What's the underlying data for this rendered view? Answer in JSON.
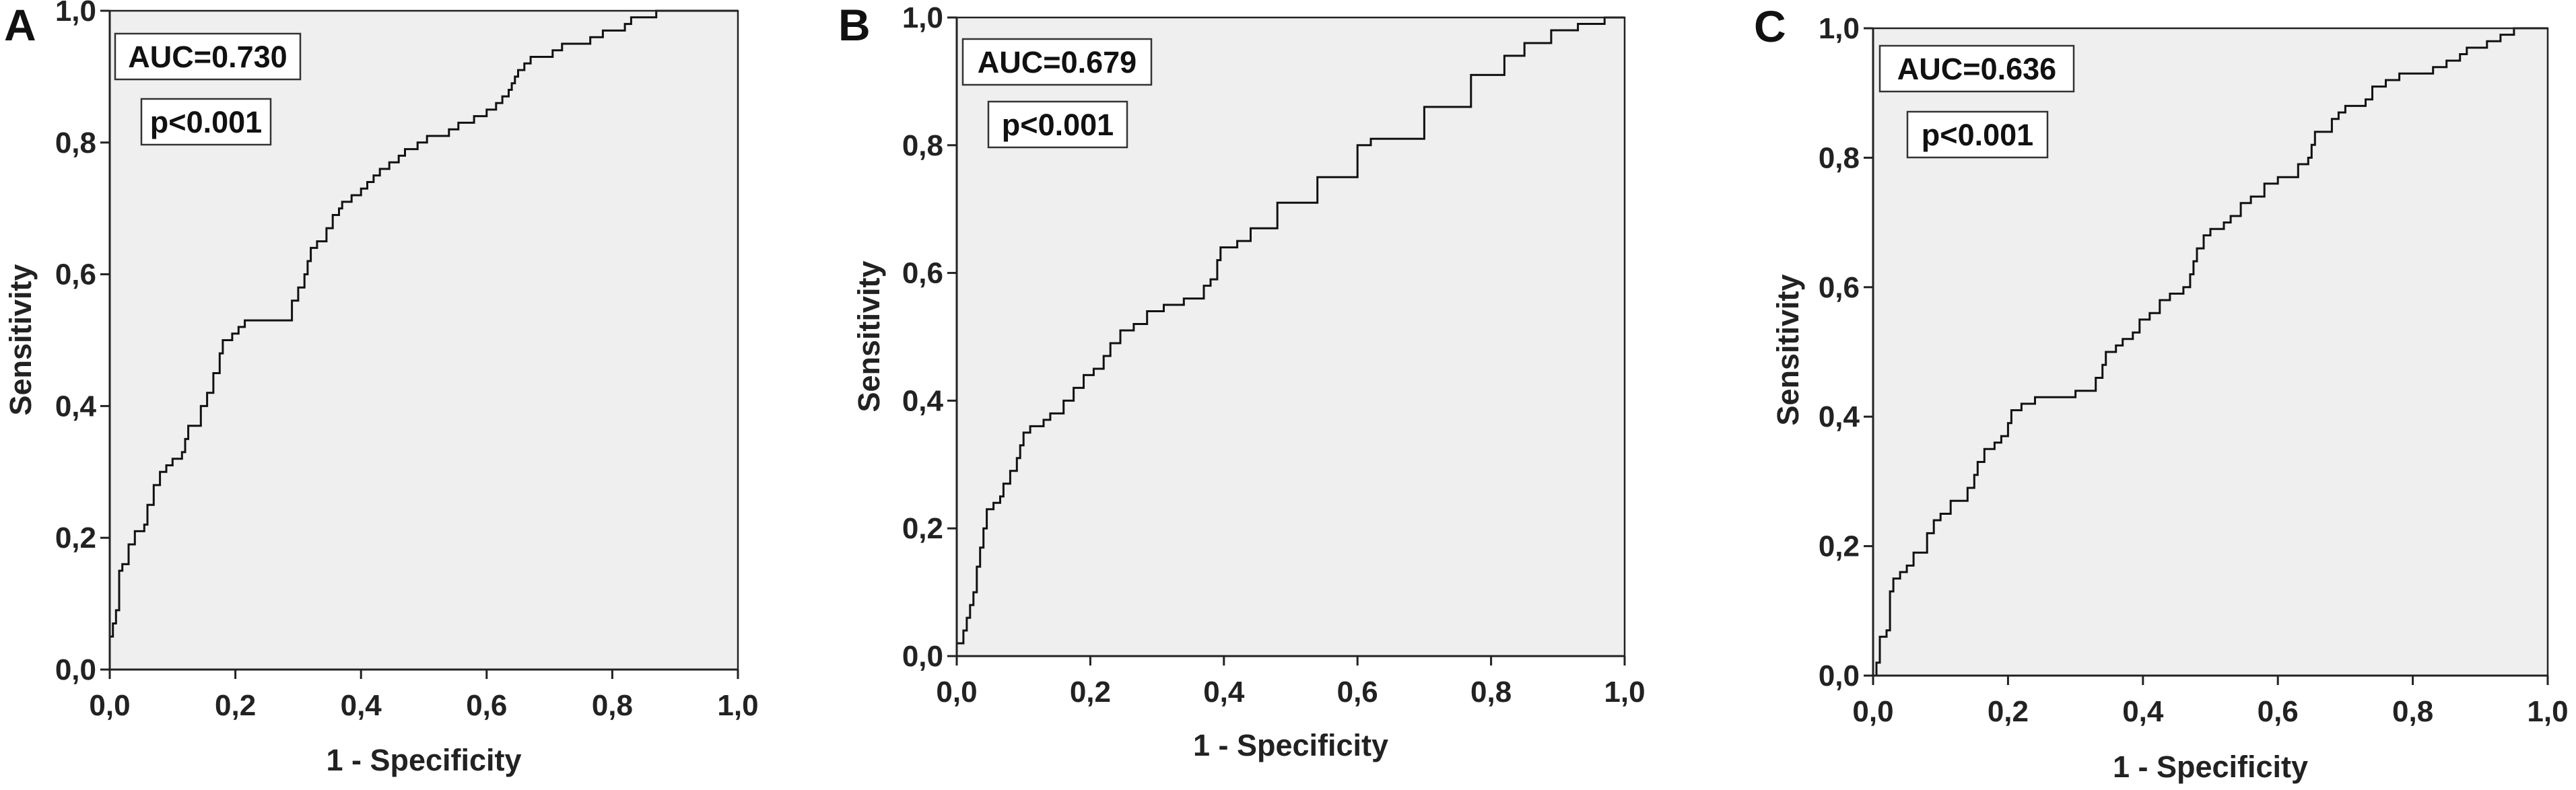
{
  "chart_data": [
    {
      "type": "line",
      "panel_label": "A",
      "xlabel": "1 - Specificity",
      "ylabel": "Sensitivity",
      "xlim": [
        0,
        1
      ],
      "ylim": [
        0,
        1
      ],
      "x_ticks": [
        "0,0",
        "0,2",
        "0,4",
        "0,6",
        "0,8",
        "1,0"
      ],
      "y_ticks": [
        "0,0",
        "0,2",
        "0,4",
        "0,6",
        "0,8",
        "1,0"
      ],
      "annotations": [
        "AUC=0.730",
        "p<0.001"
      ],
      "grid": false,
      "line_style": "step",
      "points": [
        [
          0,
          0
        ],
        [
          0,
          0.05
        ],
        [
          0.005,
          0.07
        ],
        [
          0.01,
          0.09
        ],
        [
          0.015,
          0.15
        ],
        [
          0.02,
          0.16
        ],
        [
          0.03,
          0.19
        ],
        [
          0.04,
          0.21
        ],
        [
          0.055,
          0.22
        ],
        [
          0.06,
          0.25
        ],
        [
          0.07,
          0.28
        ],
        [
          0.08,
          0.3
        ],
        [
          0.09,
          0.31
        ],
        [
          0.1,
          0.32
        ],
        [
          0.115,
          0.33
        ],
        [
          0.12,
          0.35
        ],
        [
          0.125,
          0.37
        ],
        [
          0.135,
          0.37
        ],
        [
          0.145,
          0.4
        ],
        [
          0.155,
          0.42
        ],
        [
          0.165,
          0.45
        ],
        [
          0.175,
          0.48
        ],
        [
          0.18,
          0.5
        ],
        [
          0.195,
          0.51
        ],
        [
          0.205,
          0.52
        ],
        [
          0.215,
          0.53
        ],
        [
          0.28,
          0.53
        ],
        [
          0.29,
          0.56
        ],
        [
          0.3,
          0.58
        ],
        [
          0.31,
          0.6
        ],
        [
          0.315,
          0.62
        ],
        [
          0.32,
          0.64
        ],
        [
          0.33,
          0.65
        ],
        [
          0.345,
          0.67
        ],
        [
          0.355,
          0.69
        ],
        [
          0.365,
          0.7
        ],
        [
          0.37,
          0.71
        ],
        [
          0.385,
          0.72
        ],
        [
          0.4,
          0.73
        ],
        [
          0.41,
          0.74
        ],
        [
          0.42,
          0.75
        ],
        [
          0.43,
          0.76
        ],
        [
          0.445,
          0.77
        ],
        [
          0.46,
          0.78
        ],
        [
          0.47,
          0.79
        ],
        [
          0.49,
          0.8
        ],
        [
          0.505,
          0.81
        ],
        [
          0.54,
          0.82
        ],
        [
          0.555,
          0.83
        ],
        [
          0.58,
          0.84
        ],
        [
          0.6,
          0.85
        ],
        [
          0.615,
          0.86
        ],
        [
          0.625,
          0.87
        ],
        [
          0.635,
          0.88
        ],
        [
          0.64,
          0.89
        ],
        [
          0.645,
          0.9
        ],
        [
          0.65,
          0.91
        ],
        [
          0.66,
          0.92
        ],
        [
          0.67,
          0.93
        ],
        [
          0.705,
          0.94
        ],
        [
          0.72,
          0.95
        ],
        [
          0.765,
          0.96
        ],
        [
          0.785,
          0.97
        ],
        [
          0.82,
          0.98
        ],
        [
          0.83,
          0.99
        ],
        [
          0.87,
          1.0
        ],
        [
          1.0,
          1.0
        ]
      ]
    },
    {
      "type": "line",
      "panel_label": "B",
      "xlabel": "1 - Specificity",
      "ylabel": "Sensitivity",
      "xlim": [
        0,
        1
      ],
      "ylim": [
        0,
        1
      ],
      "x_ticks": [
        "0,0",
        "0,2",
        "0,4",
        "0,6",
        "0,8",
        "1,0"
      ],
      "y_ticks": [
        "0,0",
        "0,2",
        "0,4",
        "0,6",
        "0,8",
        "1,0"
      ],
      "annotations": [
        "AUC=0.679",
        "p<0.001"
      ],
      "grid": false,
      "line_style": "step",
      "points": [
        [
          0,
          0
        ],
        [
          0,
          0.02
        ],
        [
          0.01,
          0.04
        ],
        [
          0.015,
          0.06
        ],
        [
          0.02,
          0.08
        ],
        [
          0.025,
          0.1
        ],
        [
          0.03,
          0.14
        ],
        [
          0.035,
          0.17
        ],
        [
          0.04,
          0.2
        ],
        [
          0.045,
          0.23
        ],
        [
          0.055,
          0.24
        ],
        [
          0.065,
          0.25
        ],
        [
          0.07,
          0.27
        ],
        [
          0.08,
          0.29
        ],
        [
          0.09,
          0.31
        ],
        [
          0.095,
          0.33
        ],
        [
          0.1,
          0.35
        ],
        [
          0.11,
          0.36
        ],
        [
          0.13,
          0.37
        ],
        [
          0.14,
          0.38
        ],
        [
          0.16,
          0.4
        ],
        [
          0.175,
          0.42
        ],
        [
          0.19,
          0.44
        ],
        [
          0.205,
          0.45
        ],
        [
          0.22,
          0.47
        ],
        [
          0.23,
          0.49
        ],
        [
          0.245,
          0.51
        ],
        [
          0.265,
          0.52
        ],
        [
          0.285,
          0.54
        ],
        [
          0.31,
          0.55
        ],
        [
          0.34,
          0.56
        ],
        [
          0.37,
          0.58
        ],
        [
          0.38,
          0.59
        ],
        [
          0.39,
          0.62
        ],
        [
          0.395,
          0.64
        ],
        [
          0.42,
          0.65
        ],
        [
          0.44,
          0.67
        ],
        [
          0.48,
          0.71
        ],
        [
          0.54,
          0.75
        ],
        [
          0.6,
          0.8
        ],
        [
          0.62,
          0.81
        ],
        [
          0.7,
          0.86
        ],
        [
          0.77,
          0.91
        ],
        [
          0.82,
          0.94
        ],
        [
          0.85,
          0.96
        ],
        [
          0.89,
          0.98
        ],
        [
          0.93,
          0.99
        ],
        [
          0.97,
          1.0
        ],
        [
          1.0,
          1.0
        ]
      ]
    },
    {
      "type": "line",
      "panel_label": "C",
      "xlabel": "1 - Specificity",
      "ylabel": "Sensitivity",
      "xlim": [
        0,
        1
      ],
      "ylim": [
        0,
        1
      ],
      "x_ticks": [
        "0,0",
        "0,2",
        "0,4",
        "0,6",
        "0,8",
        "1,0"
      ],
      "y_ticks": [
        "0,0",
        "0,2",
        "0,4",
        "0,6",
        "0,8",
        "1,0"
      ],
      "annotations": [
        "AUC=0.636",
        "p<0.001"
      ],
      "grid": false,
      "line_style": "step",
      "points": [
        [
          0,
          0
        ],
        [
          0.005,
          0.02
        ],
        [
          0.01,
          0.06
        ],
        [
          0.02,
          0.07
        ],
        [
          0.025,
          0.13
        ],
        [
          0.03,
          0.15
        ],
        [
          0.04,
          0.16
        ],
        [
          0.05,
          0.17
        ],
        [
          0.06,
          0.19
        ],
        [
          0.08,
          0.22
        ],
        [
          0.09,
          0.24
        ],
        [
          0.1,
          0.25
        ],
        [
          0.115,
          0.27
        ],
        [
          0.14,
          0.29
        ],
        [
          0.15,
          0.31
        ],
        [
          0.155,
          0.33
        ],
        [
          0.165,
          0.35
        ],
        [
          0.18,
          0.36
        ],
        [
          0.19,
          0.37
        ],
        [
          0.2,
          0.39
        ],
        [
          0.205,
          0.41
        ],
        [
          0.22,
          0.42
        ],
        [
          0.24,
          0.43
        ],
        [
          0.3,
          0.44
        ],
        [
          0.33,
          0.46
        ],
        [
          0.34,
          0.48
        ],
        [
          0.345,
          0.5
        ],
        [
          0.36,
          0.51
        ],
        [
          0.37,
          0.52
        ],
        [
          0.385,
          0.53
        ],
        [
          0.395,
          0.55
        ],
        [
          0.41,
          0.56
        ],
        [
          0.425,
          0.58
        ],
        [
          0.44,
          0.59
        ],
        [
          0.46,
          0.6
        ],
        [
          0.47,
          0.62
        ],
        [
          0.475,
          0.64
        ],
        [
          0.48,
          0.66
        ],
        [
          0.49,
          0.68
        ],
        [
          0.5,
          0.69
        ],
        [
          0.52,
          0.7
        ],
        [
          0.53,
          0.71
        ],
        [
          0.545,
          0.73
        ],
        [
          0.56,
          0.74
        ],
        [
          0.58,
          0.76
        ],
        [
          0.6,
          0.77
        ],
        [
          0.63,
          0.79
        ],
        [
          0.645,
          0.8
        ],
        [
          0.65,
          0.82
        ],
        [
          0.655,
          0.84
        ],
        [
          0.68,
          0.86
        ],
        [
          0.69,
          0.87
        ],
        [
          0.7,
          0.88
        ],
        [
          0.73,
          0.89
        ],
        [
          0.74,
          0.91
        ],
        [
          0.76,
          0.92
        ],
        [
          0.78,
          0.93
        ],
        [
          0.83,
          0.94
        ],
        [
          0.85,
          0.95
        ],
        [
          0.87,
          0.96
        ],
        [
          0.88,
          0.97
        ],
        [
          0.91,
          0.98
        ],
        [
          0.93,
          0.99
        ],
        [
          0.95,
          1.0
        ],
        [
          1.0,
          1.0
        ]
      ]
    }
  ]
}
